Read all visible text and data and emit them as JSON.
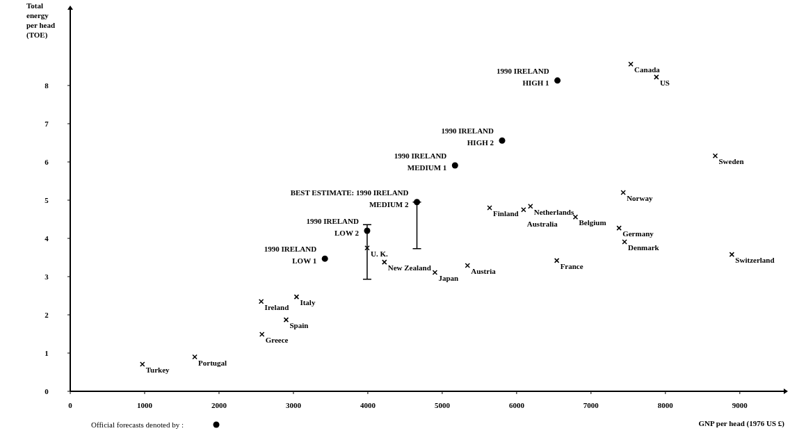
{
  "chart_data": {
    "type": "scatter",
    "xlabel": "GNP per head (1976 US £)",
    "ylabel": "Total energy per head (TOE)",
    "xlim": [
      0,
      9600
    ],
    "ylim": [
      0,
      10
    ],
    "xticks": [
      0,
      1000,
      2000,
      3000,
      4000,
      5000,
      6000,
      7000,
      8000,
      9000
    ],
    "yticks": [
      0,
      1,
      2,
      3,
      4,
      5,
      6,
      7,
      8
    ],
    "grid": false,
    "legend": "bottom left",
    "series": [
      {
        "color": "#000000",
        "marker": "cross",
        "x": [
          970,
          1674,
          2567,
          3042,
          2902,
          2577,
          3991,
          4223,
          4902,
          5340,
          5637,
          6093,
          6186,
          6791,
          7433,
          7377,
          7451,
          6540,
          7535,
          7879,
          8670,
          8893
        ],
        "values": [
          0.71,
          0.9,
          2.35,
          2.47,
          1.87,
          1.49,
          3.75,
          3.38,
          3.11,
          3.29,
          4.8,
          4.75,
          4.84,
          4.56,
          5.2,
          4.27,
          3.91,
          3.42,
          8.56,
          8.22,
          6.16,
          3.58
        ]
      },
      {
        "name": "Official forecasts denoted by :",
        "color": "#000000",
        "marker": "circle",
        "x": [
          3423,
          3991,
          4660,
          5172,
          5805,
          6549
        ],
        "values": [
          3.47,
          4.2,
          4.95,
          5.91,
          6.56,
          8.13
        ],
        "errors": [
          null,
          [
            2.93,
            4.36
          ],
          [
            3.73,
            4.95
          ],
          null,
          null,
          null
        ]
      }
    ],
    "annotations": [
      {
        "text": "Turkey",
        "x": 970,
        "y": 0.71
      },
      {
        "text": "Portugal",
        "x": 1674,
        "y": 0.9
      },
      {
        "text": "Ireland",
        "x": 2567,
        "y": 2.35
      },
      {
        "text": "Italy",
        "x": 3042,
        "y": 2.47
      },
      {
        "text": "Spain",
        "x": 2902,
        "y": 1.87
      },
      {
        "text": "Greece",
        "x": 2577,
        "y": 1.49
      },
      {
        "text": "U. K.",
        "x": 3991,
        "y": 3.75
      },
      {
        "text": "New Zealand",
        "x": 4223,
        "y": 3.38
      },
      {
        "text": "Japan",
        "x": 4902,
        "y": 3.11
      },
      {
        "text": "Austria",
        "x": 5340,
        "y": 3.29
      },
      {
        "text": "Finland",
        "x": 5637,
        "y": 4.8
      },
      {
        "text": "Netherlands",
        "x": 6186,
        "y": 4.84
      },
      {
        "text": "Australia",
        "x": 6093,
        "y": 4.75
      },
      {
        "text": "Belgium",
        "x": 6791,
        "y": 4.56
      },
      {
        "text": "Norway",
        "x": 7433,
        "y": 5.2
      },
      {
        "text": "Germany",
        "x": 7377,
        "y": 4.27
      },
      {
        "text": "Denmark",
        "x": 7451,
        "y": 3.91
      },
      {
        "text": "France",
        "x": 6540,
        "y": 3.42
      },
      {
        "text": "Canada",
        "x": 7535,
        "y": 8.56
      },
      {
        "text": "US",
        "x": 7879,
        "y": 8.22
      },
      {
        "text": "Sweden",
        "x": 8670,
        "y": 6.16
      },
      {
        "text": "Switzerland",
        "x": 8893,
        "y": 3.58
      },
      {
        "text": "1990 IRELAND\nLOW 1",
        "x": 3423,
        "y": 3.47
      },
      {
        "text": "1990 IRELAND\nLOW 2",
        "x": 3991,
        "y": 4.2
      },
      {
        "text": "BEST ESTIMATE: 1990 IRELAND\nMEDIUM 2",
        "x": 4660,
        "y": 4.95
      },
      {
        "text": "1990 IRELAND\nMEDIUM 1",
        "x": 5172,
        "y": 5.91
      },
      {
        "text": "1990 IRELAND\nHIGH 2",
        "x": 5805,
        "y": 6.56
      },
      {
        "text": "1990 IRELAND\nHIGH 1",
        "x": 6549,
        "y": 8.13
      }
    ]
  }
}
